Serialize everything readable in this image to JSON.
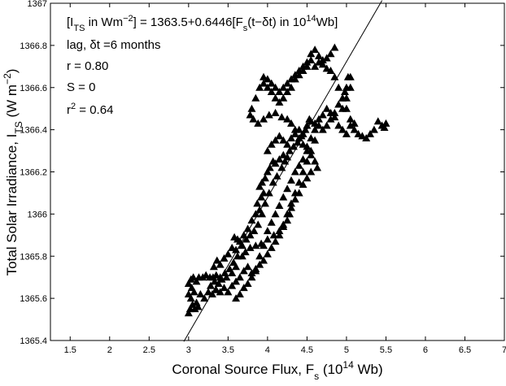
{
  "chart_data": {
    "type": "scatter",
    "xlabel": {
      "main": "Coronal Source Flux, F",
      "sub": "s",
      "mid": " (10",
      "sup": "14",
      "end": " Wb)"
    },
    "ylabel": {
      "main": "Total Solar Irradiance, I",
      "sub": "TS",
      "mid": " (W m",
      "sup": "−2",
      "end": ")"
    },
    "xlim": [
      1.25,
      7
    ],
    "ylim": [
      1365.4,
      1367
    ],
    "xticks": [
      1.5,
      2,
      2.5,
      3,
      3.5,
      4,
      4.5,
      5,
      5.5,
      6,
      6.5,
      7
    ],
    "xtick_labels": [
      "1.5",
      "2",
      "2.5",
      "3",
      "3.5",
      "4",
      "4.5",
      "5",
      "5.5",
      "6",
      "6.5",
      "7"
    ],
    "yticks": [
      1365.4,
      1365.6,
      1365.8,
      1366,
      1366.2,
      1366.4,
      1366.6,
      1366.8,
      1367
    ],
    "ytick_labels": [
      "1365.4",
      "1365.6",
      "1365.8",
      "1366",
      "1366.2",
      "1366.4",
      "1366.6",
      "1366.8",
      "1367"
    ],
    "grid": false,
    "marker": "triangle",
    "marker_color": "#000000",
    "fit_line": {
      "intercept": 1363.5,
      "slope": 0.6446,
      "x_range": [
        2.94,
        5.45
      ]
    },
    "annotations": [
      {
        "parts": [
          "[I",
          "_TS",
          " in Wm",
          "^−2",
          "] = 1363.5+0.6446[F",
          "_s",
          "(t−δt) in 10",
          "^14",
          "Wb]"
        ]
      },
      {
        "parts": [
          "lag, δt =6 months"
        ]
      },
      {
        "parts": [
          "r = 0.80"
        ]
      },
      {
        "parts": [
          "S = 0"
        ]
      },
      {
        "parts": [
          "r",
          "^2",
          " = 0.64"
        ]
      }
    ],
    "points": [
      [
        3.0,
        1365.53
      ],
      [
        3.02,
        1365.55
      ],
      [
        3.05,
        1365.57
      ],
      [
        3.03,
        1365.6
      ],
      [
        3.08,
        1365.55
      ],
      [
        3.1,
        1365.58
      ],
      [
        3.12,
        1365.56
      ],
      [
        3.0,
        1365.62
      ],
      [
        3.04,
        1365.65
      ],
      [
        3.07,
        1365.63
      ],
      [
        3.0,
        1365.67
      ],
      [
        3.03,
        1365.69
      ],
      [
        3.06,
        1365.7
      ],
      [
        3.1,
        1365.68
      ],
      [
        3.13,
        1365.7
      ],
      [
        3.18,
        1365.7
      ],
      [
        3.22,
        1365.71
      ],
      [
        3.27,
        1365.7
      ],
      [
        3.31,
        1365.7
      ],
      [
        3.35,
        1365.71
      ],
      [
        3.15,
        1365.62
      ],
      [
        3.2,
        1365.6
      ],
      [
        3.25,
        1365.63
      ],
      [
        3.3,
        1365.62
      ],
      [
        3.35,
        1365.64
      ],
      [
        3.4,
        1365.63
      ],
      [
        3.45,
        1365.65
      ],
      [
        3.5,
        1365.63
      ],
      [
        3.55,
        1365.66
      ],
      [
        3.38,
        1365.67
      ],
      [
        3.42,
        1365.69
      ],
      [
        3.48,
        1365.7
      ],
      [
        3.32,
        1365.75
      ],
      [
        3.36,
        1365.78
      ],
      [
        3.4,
        1365.76
      ],
      [
        3.45,
        1365.79
      ],
      [
        3.5,
        1365.81
      ],
      [
        3.55,
        1365.84
      ],
      [
        3.6,
        1365.83
      ],
      [
        3.65,
        1365.87
      ],
      [
        3.58,
        1365.89
      ],
      [
        3.62,
        1365.88
      ],
      [
        3.7,
        1365.9
      ],
      [
        3.75,
        1365.93
      ],
      [
        3.8,
        1365.97
      ],
      [
        3.85,
        1366.0
      ],
      [
        3.9,
        1366.02
      ],
      [
        3.87,
        1366.05
      ],
      [
        3.92,
        1366.08
      ],
      [
        3.95,
        1366.1
      ],
      [
        3.9,
        1366.13
      ],
      [
        3.93,
        1366.15
      ],
      [
        3.97,
        1366.17
      ],
      [
        4.0,
        1366.2
      ],
      [
        4.03,
        1366.22
      ],
      [
        4.07,
        1366.25
      ],
      [
        4.1,
        1366.24
      ],
      [
        4.15,
        1366.26
      ],
      [
        4.2,
        1366.28
      ],
      [
        4.25,
        1366.27
      ],
      [
        4.0,
        1366.3
      ],
      [
        4.05,
        1366.33
      ],
      [
        4.1,
        1366.35
      ],
      [
        4.15,
        1366.37
      ],
      [
        4.2,
        1366.35
      ],
      [
        4.25,
        1366.33
      ],
      [
        4.3,
        1366.36
      ],
      [
        4.35,
        1366.38
      ],
      [
        4.4,
        1366.4
      ],
      [
        4.45,
        1366.38
      ],
      [
        4.5,
        1366.42
      ],
      [
        4.55,
        1366.44
      ],
      [
        4.6,
        1366.43
      ],
      [
        4.65,
        1366.45
      ],
      [
        4.7,
        1366.47
      ],
      [
        4.75,
        1366.5
      ],
      [
        4.8,
        1366.48
      ],
      [
        4.85,
        1366.46
      ],
      [
        4.9,
        1366.42
      ],
      [
        4.95,
        1366.4
      ],
      [
        5.0,
        1366.38
      ],
      [
        5.05,
        1366.42
      ],
      [
        5.1,
        1366.4
      ],
      [
        5.15,
        1366.38
      ],
      [
        5.2,
        1366.37
      ],
      [
        5.25,
        1366.36
      ],
      [
        5.3,
        1366.38
      ],
      [
        5.35,
        1366.4
      ],
      [
        5.4,
        1366.44
      ],
      [
        5.45,
        1366.42
      ],
      [
        5.48,
        1366.41
      ],
      [
        5.5,
        1366.43
      ],
      [
        4.95,
        1366.5
      ],
      [
        5.0,
        1366.55
      ],
      [
        5.05,
        1366.6
      ],
      [
        5.02,
        1366.65
      ],
      [
        4.98,
        1366.58
      ],
      [
        4.6,
        1366.7
      ],
      [
        4.65,
        1366.72
      ],
      [
        4.7,
        1366.73
      ],
      [
        4.75,
        1366.74
      ],
      [
        4.8,
        1366.76
      ],
      [
        4.85,
        1366.79
      ],
      [
        4.55,
        1366.73
      ],
      [
        4.5,
        1366.7
      ],
      [
        4.45,
        1366.68
      ],
      [
        4.4,
        1366.66
      ],
      [
        4.35,
        1366.64
      ],
      [
        4.3,
        1366.6
      ],
      [
        4.25,
        1366.58
      ],
      [
        4.2,
        1366.55
      ],
      [
        4.15,
        1366.53
      ],
      [
        4.1,
        1366.55
      ],
      [
        4.05,
        1366.58
      ],
      [
        4.0,
        1366.6
      ],
      [
        3.95,
        1366.62
      ],
      [
        3.9,
        1366.6
      ],
      [
        3.85,
        1366.55
      ],
      [
        3.8,
        1366.5
      ],
      [
        3.78,
        1366.47
      ],
      [
        3.82,
        1366.45
      ],
      [
        3.88,
        1366.43
      ],
      [
        3.95,
        1366.45
      ],
      [
        4.02,
        1366.47
      ],
      [
        4.1,
        1366.48
      ],
      [
        4.18,
        1366.46
      ],
      [
        4.25,
        1366.45
      ],
      [
        4.3,
        1366.43
      ],
      [
        4.35,
        1366.4
      ],
      [
        4.4,
        1366.36
      ],
      [
        4.45,
        1366.33
      ],
      [
        4.5,
        1366.3
      ],
      [
        4.55,
        1366.28
      ],
      [
        4.6,
        1366.25
      ],
      [
        4.63,
        1366.22
      ],
      [
        4.55,
        1366.2
      ],
      [
        4.5,
        1366.17
      ],
      [
        4.45,
        1366.14
      ],
      [
        4.4,
        1366.1
      ],
      [
        4.35,
        1366.07
      ],
      [
        4.3,
        1366.03
      ],
      [
        4.28,
        1366.0
      ],
      [
        4.25,
        1365.97
      ],
      [
        4.2,
        1365.94
      ],
      [
        4.15,
        1365.9
      ],
      [
        4.1,
        1365.87
      ],
      [
        4.05,
        1365.84
      ],
      [
        4.0,
        1365.81
      ],
      [
        3.95,
        1365.78
      ],
      [
        3.9,
        1365.76
      ],
      [
        3.85,
        1365.74
      ],
      [
        3.8,
        1365.72
      ],
      [
        3.75,
        1365.75
      ],
      [
        3.7,
        1365.73
      ],
      [
        3.65,
        1365.7
      ],
      [
        3.6,
        1365.68
      ],
      [
        3.55,
        1365.72
      ],
      [
        3.6,
        1365.75
      ],
      [
        3.68,
        1365.8
      ],
      [
        3.72,
        1365.82
      ],
      [
        3.78,
        1365.84
      ],
      [
        3.85,
        1365.85
      ],
      [
        3.92,
        1365.86
      ],
      [
        4.0,
        1365.88
      ],
      [
        4.08,
        1365.9
      ],
      [
        4.15,
        1365.92
      ],
      [
        4.2,
        1365.95
      ],
      [
        4.25,
        1366.0
      ],
      [
        4.3,
        1366.05
      ],
      [
        4.35,
        1366.1
      ],
      [
        4.4,
        1366.15
      ],
      [
        4.45,
        1366.2
      ],
      [
        4.5,
        1366.25
      ],
      [
        4.55,
        1366.3
      ],
      [
        4.6,
        1366.35
      ],
      [
        3.6,
        1365.6
      ],
      [
        3.65,
        1365.62
      ],
      [
        3.7,
        1365.65
      ],
      [
        3.75,
        1365.67
      ],
      [
        3.8,
        1365.7
      ],
      [
        3.85,
        1365.73
      ],
      [
        3.9,
        1365.8
      ],
      [
        3.95,
        1365.85
      ],
      [
        4.0,
        1365.92
      ],
      [
        4.05,
        1365.96
      ],
      [
        4.1,
        1366.0
      ],
      [
        4.15,
        1366.04
      ],
      [
        4.2,
        1366.08
      ],
      [
        4.25,
        1366.12
      ],
      [
        4.3,
        1366.16
      ],
      [
        4.35,
        1366.2
      ],
      [
        4.4,
        1366.23
      ],
      [
        4.45,
        1366.26
      ],
      [
        4.5,
        1366.32
      ],
      [
        4.55,
        1366.36
      ],
      [
        4.6,
        1366.4
      ],
      [
        4.65,
        1366.42
      ],
      [
        4.7,
        1366.4
      ],
      [
        4.75,
        1366.42
      ],
      [
        4.8,
        1366.45
      ],
      [
        4.85,
        1366.48
      ],
      [
        4.9,
        1366.52
      ],
      [
        4.95,
        1366.55
      ],
      [
        5.0,
        1366.6
      ],
      [
        5.05,
        1366.65
      ],
      [
        3.28,
        1365.66
      ],
      [
        3.33,
        1365.68
      ],
      [
        3.4,
        1365.7
      ],
      [
        3.46,
        1365.72
      ],
      [
        3.52,
        1365.74
      ],
      [
        3.57,
        1365.77
      ],
      [
        3.62,
        1365.8
      ],
      [
        3.68,
        1365.85
      ],
      [
        3.73,
        1365.88
      ],
      [
        3.78,
        1365.9
      ],
      [
        3.83,
        1365.92
      ],
      [
        3.88,
        1365.95
      ],
      [
        3.93,
        1366.0
      ],
      [
        3.97,
        1366.05
      ],
      [
        4.02,
        1366.1
      ],
      [
        4.07,
        1366.15
      ],
      [
        4.12,
        1366.18
      ],
      [
        4.18,
        1366.22
      ],
      [
        4.22,
        1366.25
      ],
      [
        4.28,
        1366.3
      ],
      [
        4.33,
        1366.32
      ],
      [
        4.38,
        1366.34
      ],
      [
        4.43,
        1366.37
      ],
      [
        4.48,
        1366.4
      ],
      [
        4.53,
        1366.45
      ],
      [
        3.95,
        1366.65
      ],
      [
        4.0,
        1366.64
      ],
      [
        4.05,
        1366.62
      ],
      [
        4.1,
        1366.6
      ],
      [
        4.15,
        1366.58
      ],
      [
        4.2,
        1366.6
      ],
      [
        4.25,
        1366.62
      ],
      [
        4.3,
        1366.64
      ],
      [
        4.35,
        1366.66
      ],
      [
        4.4,
        1366.68
      ],
      [
        4.45,
        1366.7
      ],
      [
        4.5,
        1366.72
      ],
      [
        4.55,
        1366.76
      ],
      [
        4.6,
        1366.78
      ],
      [
        4.65,
        1366.75
      ],
      [
        4.7,
        1366.71
      ],
      [
        4.75,
        1366.69
      ],
      [
        4.8,
        1366.68
      ],
      [
        4.85,
        1366.65
      ],
      [
        4.9,
        1366.6
      ],
      [
        4.95,
        1366.55
      ],
      [
        5.0,
        1366.5
      ],
      [
        5.05,
        1366.45
      ],
      [
        5.1,
        1366.43
      ]
    ]
  }
}
